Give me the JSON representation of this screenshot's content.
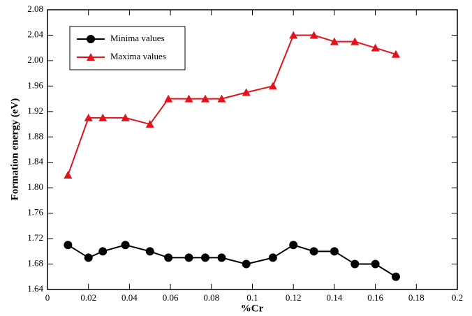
{
  "chart_data": {
    "type": "line",
    "xlabel": "%Cr",
    "ylabel": "Formation energy (eV)",
    "x": [
      0.01,
      0.02,
      0.027,
      0.038,
      0.05,
      0.059,
      0.069,
      0.077,
      0.085,
      0.097,
      0.11,
      0.12,
      0.13,
      0.14,
      0.15,
      0.16,
      0.17
    ],
    "series": [
      {
        "name": "Minima values",
        "color": "#000000",
        "marker": "circle",
        "values": [
          1.71,
          1.69,
          1.7,
          1.71,
          1.7,
          1.69,
          1.69,
          1.69,
          1.69,
          1.68,
          1.69,
          1.71,
          1.7,
          1.7,
          1.68,
          1.68,
          1.66
        ]
      },
      {
        "name": "Maxima values",
        "color": "#e3121b",
        "marker": "triangle",
        "values": [
          1.82,
          1.91,
          1.91,
          1.91,
          1.9,
          1.94,
          1.94,
          1.94,
          1.94,
          1.95,
          1.96,
          2.04,
          2.04,
          2.03,
          2.03,
          2.02,
          2.01
        ]
      }
    ],
    "xlim": [
      0,
      0.2
    ],
    "xticks": [
      0,
      0.02,
      0.04,
      0.06,
      0.08,
      0.1,
      0.12,
      0.14,
      0.16,
      0.18,
      0.2
    ],
    "ylim": [
      1.64,
      2.08
    ],
    "yticks": [
      1.64,
      1.68,
      1.72,
      1.76,
      {
        "value": 1.8,
        "label": "1.80"
      },
      1.84,
      1.88,
      1.92,
      1.96,
      {
        "value": 2,
        "label": "2.00"
      },
      2.04,
      2.08
    ],
    "legend": "upper left",
    "grid": false
  }
}
